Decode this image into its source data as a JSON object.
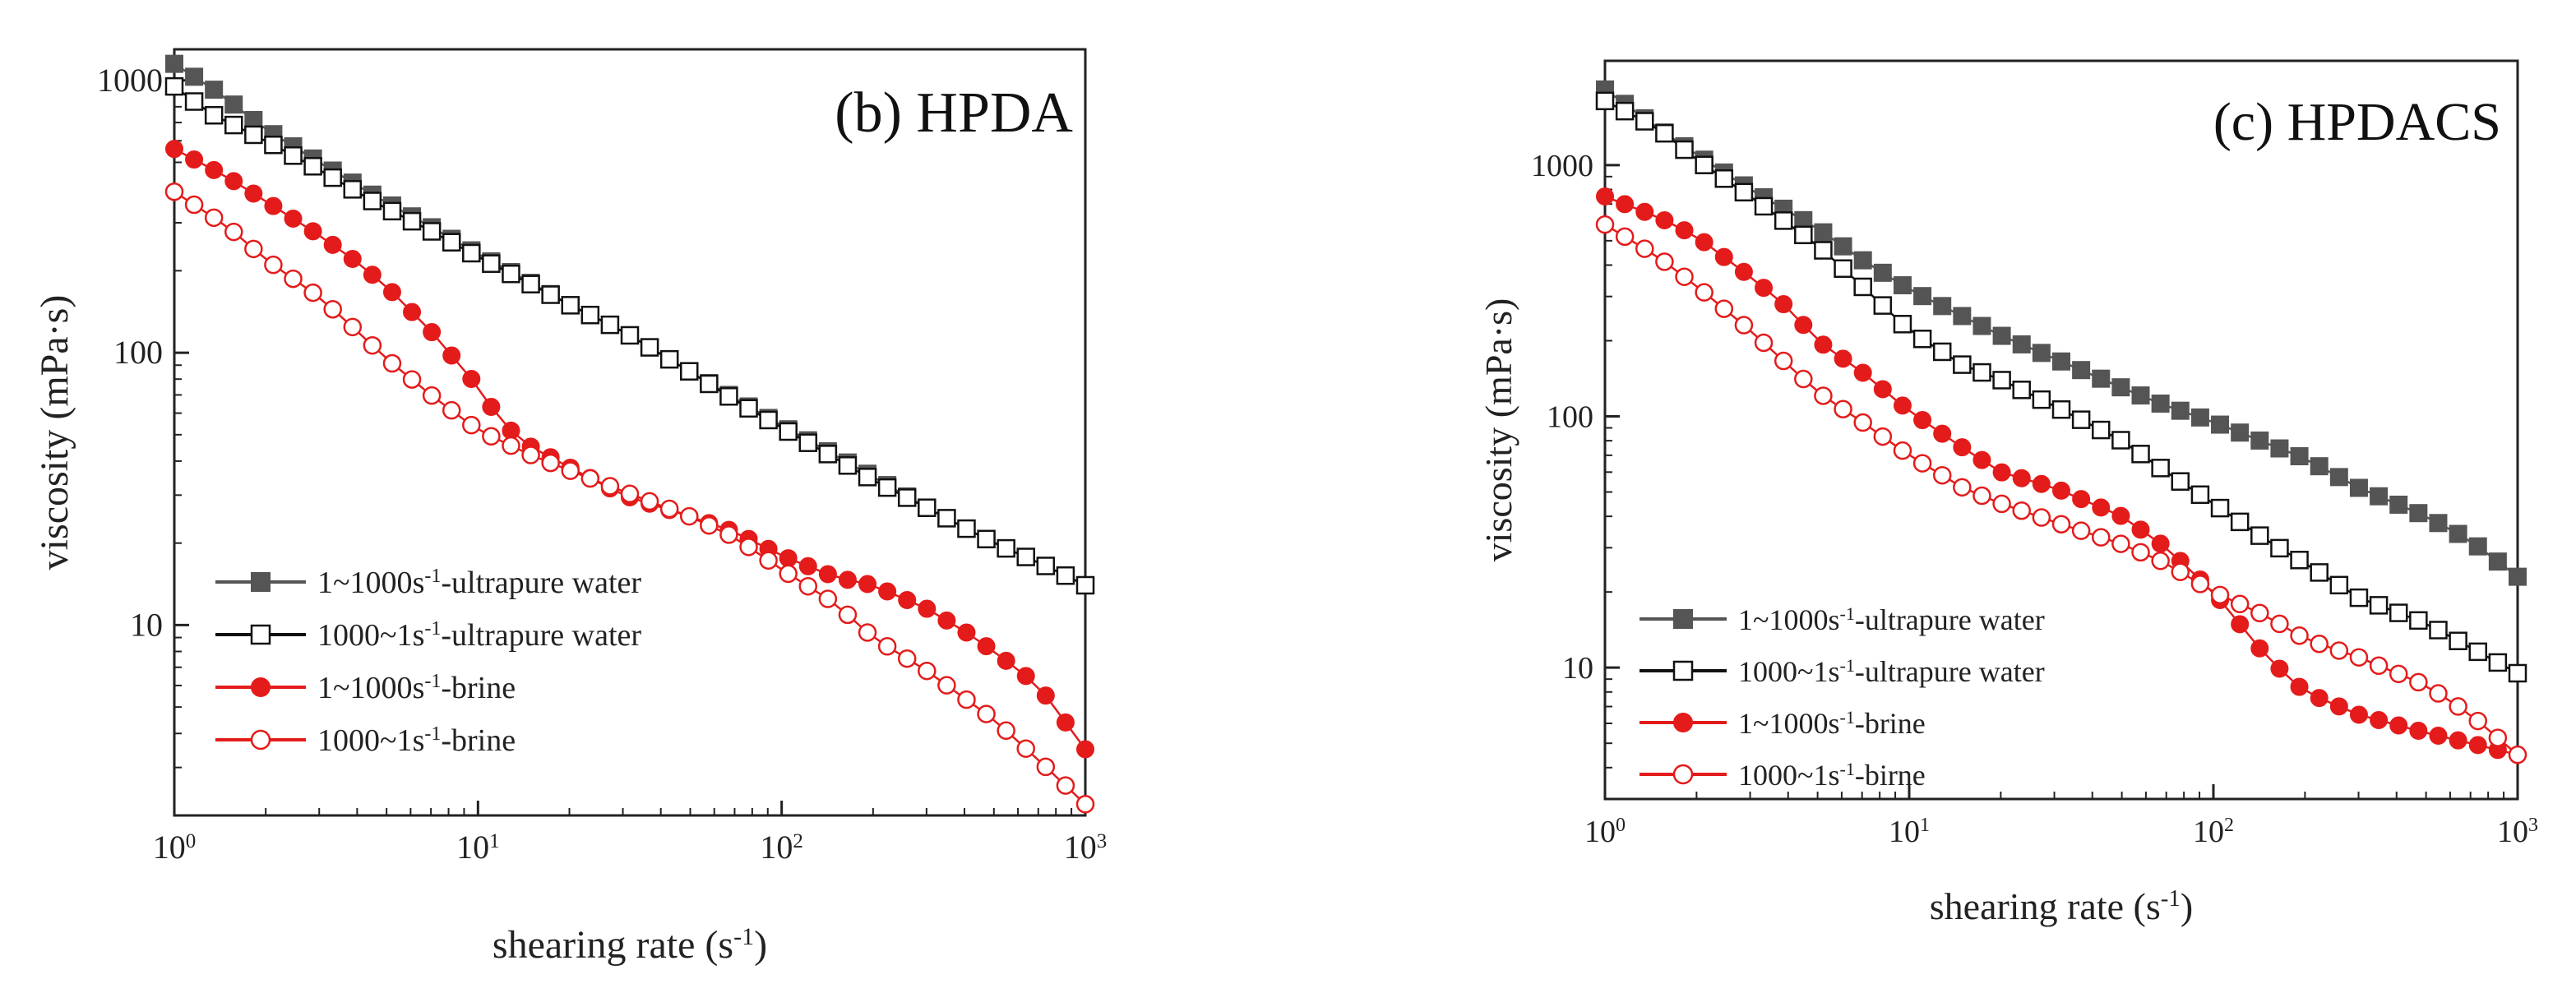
{
  "chart_data": [
    {
      "type": "line",
      "title": "(b) HPDA",
      "xlabel": "shearing rate (s-1)",
      "ylabel": "viscosity (mPa·s)",
      "xscale": "log",
      "yscale": "log",
      "xlim": [
        1,
        1000
      ],
      "ylim": [
        2,
        1300
      ],
      "xticks": [
        "10^0",
        "10^1",
        "10^2",
        "10^3"
      ],
      "yticks": [
        "10",
        "100",
        "1000"
      ],
      "grid": false,
      "legend_position": "lower-left",
      "series": [
        {
          "name": "1~1000s-1-ultrapure water",
          "color": "#555555",
          "marker": "filled-square",
          "x": [
            1,
            1.4,
            2,
            3,
            4.5,
            7,
            10,
            15,
            20,
            30,
            50,
            70,
            100,
            150,
            200,
            300,
            500,
            700,
            1000
          ],
          "y": [
            1150,
            900,
            660,
            500,
            380,
            290,
            230,
            180,
            150,
            120,
            85,
            68,
            54,
            42,
            35,
            27,
            20,
            17,
            14
          ]
        },
        {
          "name": "1000~1s-1-ultrapure water",
          "color": "#111111",
          "marker": "open-square",
          "x": [
            1,
            1.3,
            2,
            3,
            4.5,
            7,
            10,
            15,
            20,
            30,
            50,
            70,
            100,
            150,
            200,
            300,
            500,
            700,
            1000
          ],
          "y": [
            950,
            760,
            600,
            470,
            360,
            280,
            225,
            178,
            150,
            120,
            85,
            67,
            53,
            41,
            34,
            27,
            20,
            17,
            14
          ]
        },
        {
          "name": "1~1000s-1-brine",
          "color": "#e41b1b",
          "marker": "filled-circle",
          "x": [
            1,
            1.5,
            2,
            3,
            4,
            5,
            7,
            10,
            12,
            15,
            20,
            30,
            50,
            70,
            100,
            150,
            200,
            300,
            400,
            500,
            700,
            1000
          ],
          "y": [
            560,
            440,
            360,
            270,
            215,
            175,
            120,
            75,
            55,
            45,
            38,
            30,
            25,
            22,
            18,
            15,
            14,
            11.5,
            9.5,
            8,
            6,
            3.5
          ]
        },
        {
          "name": "1000~1s-1-brine",
          "color": "#e41b1b",
          "marker": "open-circle",
          "x": [
            1,
            1.5,
            2,
            3,
            4,
            5,
            7,
            10,
            15,
            20,
            30,
            50,
            70,
            100,
            150,
            200,
            300,
            500,
            700,
            1000
          ],
          "y": [
            390,
            290,
            220,
            160,
            120,
            95,
            70,
            52,
            42,
            37,
            31,
            25,
            21,
            16,
            12,
            9,
            6.8,
            4.5,
            3.2,
            2.2
          ]
        }
      ]
    },
    {
      "type": "line",
      "title": "(c) HPDACS",
      "xlabel": "shearing rate (s-1)",
      "ylabel": "viscosity (mPa·s)",
      "xscale": "log",
      "yscale": "log",
      "xlim": [
        1,
        1000
      ],
      "ylim": [
        3,
        2600
      ],
      "xticks": [
        "10^0",
        "10^1",
        "10^2",
        "10^3"
      ],
      "yticks": [
        "10",
        "100",
        "1000"
      ],
      "grid": false,
      "legend_position": "lower-left",
      "series": [
        {
          "name": "1~1000s-1-ultrapure water",
          "color": "#555555",
          "marker": "filled-square",
          "x": [
            1,
            1.5,
            2,
            3,
            5,
            7,
            10,
            15,
            20,
            30,
            50,
            70,
            100,
            150,
            200,
            300,
            500,
            700,
            1000
          ],
          "y": [
            2000,
            1400,
            1100,
            800,
            560,
            420,
            320,
            250,
            210,
            170,
            130,
            110,
            95,
            78,
            68,
            52,
            40,
            32,
            23
          ]
        },
        {
          "name": "1000~1s-1-ultrapure water",
          "color": "#111111",
          "marker": "open-square",
          "x": [
            1,
            1.5,
            2,
            3,
            5,
            7,
            10,
            15,
            20,
            30,
            50,
            70,
            100,
            150,
            200,
            300,
            500,
            700,
            1000
          ],
          "y": [
            1800,
            1400,
            1050,
            750,
            480,
            330,
            220,
            160,
            140,
            110,
            80,
            60,
            45,
            32,
            26,
            19,
            15,
            12,
            9.5
          ]
        },
        {
          "name": "1~1000s-1-brine",
          "color": "#e41b1b",
          "marker": "filled-circle",
          "x": [
            1,
            1.5,
            2,
            3,
            4,
            5,
            7,
            10,
            15,
            20,
            30,
            50,
            70,
            100,
            150,
            200,
            300,
            500,
            700,
            1000
          ],
          "y": [
            750,
            620,
            520,
            360,
            270,
            200,
            150,
            105,
            75,
            60,
            52,
            40,
            30,
            20,
            11,
            8,
            6.5,
            5.5,
            5,
            4.5
          ]
        },
        {
          "name": "1000~1s-1-birne",
          "color": "#e41b1b",
          "marker": "open-circle",
          "x": [
            1,
            1.5,
            2,
            3,
            4,
            5,
            7,
            10,
            15,
            20,
            30,
            50,
            70,
            100,
            150,
            200,
            300,
            500,
            700,
            1000
          ],
          "y": [
            580,
            430,
            330,
            220,
            160,
            125,
            95,
            70,
            52,
            45,
            38,
            31,
            26,
            20,
            16,
            13,
            11,
            8.5,
            6.5,
            4.5
          ]
        }
      ]
    }
  ]
}
